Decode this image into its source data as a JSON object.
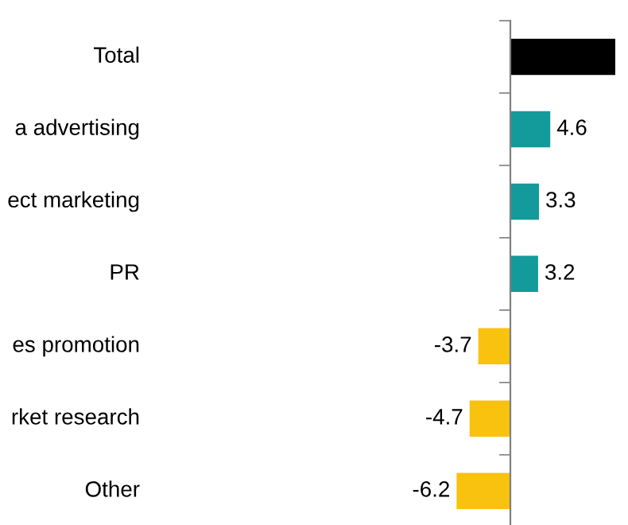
{
  "chart_data": {
    "type": "bar",
    "orientation": "horizontal",
    "categories": [
      "Total",
      "a advertising",
      "ect marketing",
      "PR",
      "es promotion",
      "rket research",
      "Other"
    ],
    "values": [
      12.1,
      4.6,
      3.3,
      3.2,
      -3.7,
      -4.7,
      -6.2
    ],
    "colors": [
      "#000000",
      "#139a9b",
      "#139a9b",
      "#139a9b",
      "#f9c20e",
      "#f9c20e",
      "#f9c20e"
    ],
    "value_labels": [
      null,
      "4.6",
      "3.3",
      "3.2",
      "-3.7",
      "-4.7",
      "-6.2"
    ],
    "grid": false,
    "legend": false
  }
}
